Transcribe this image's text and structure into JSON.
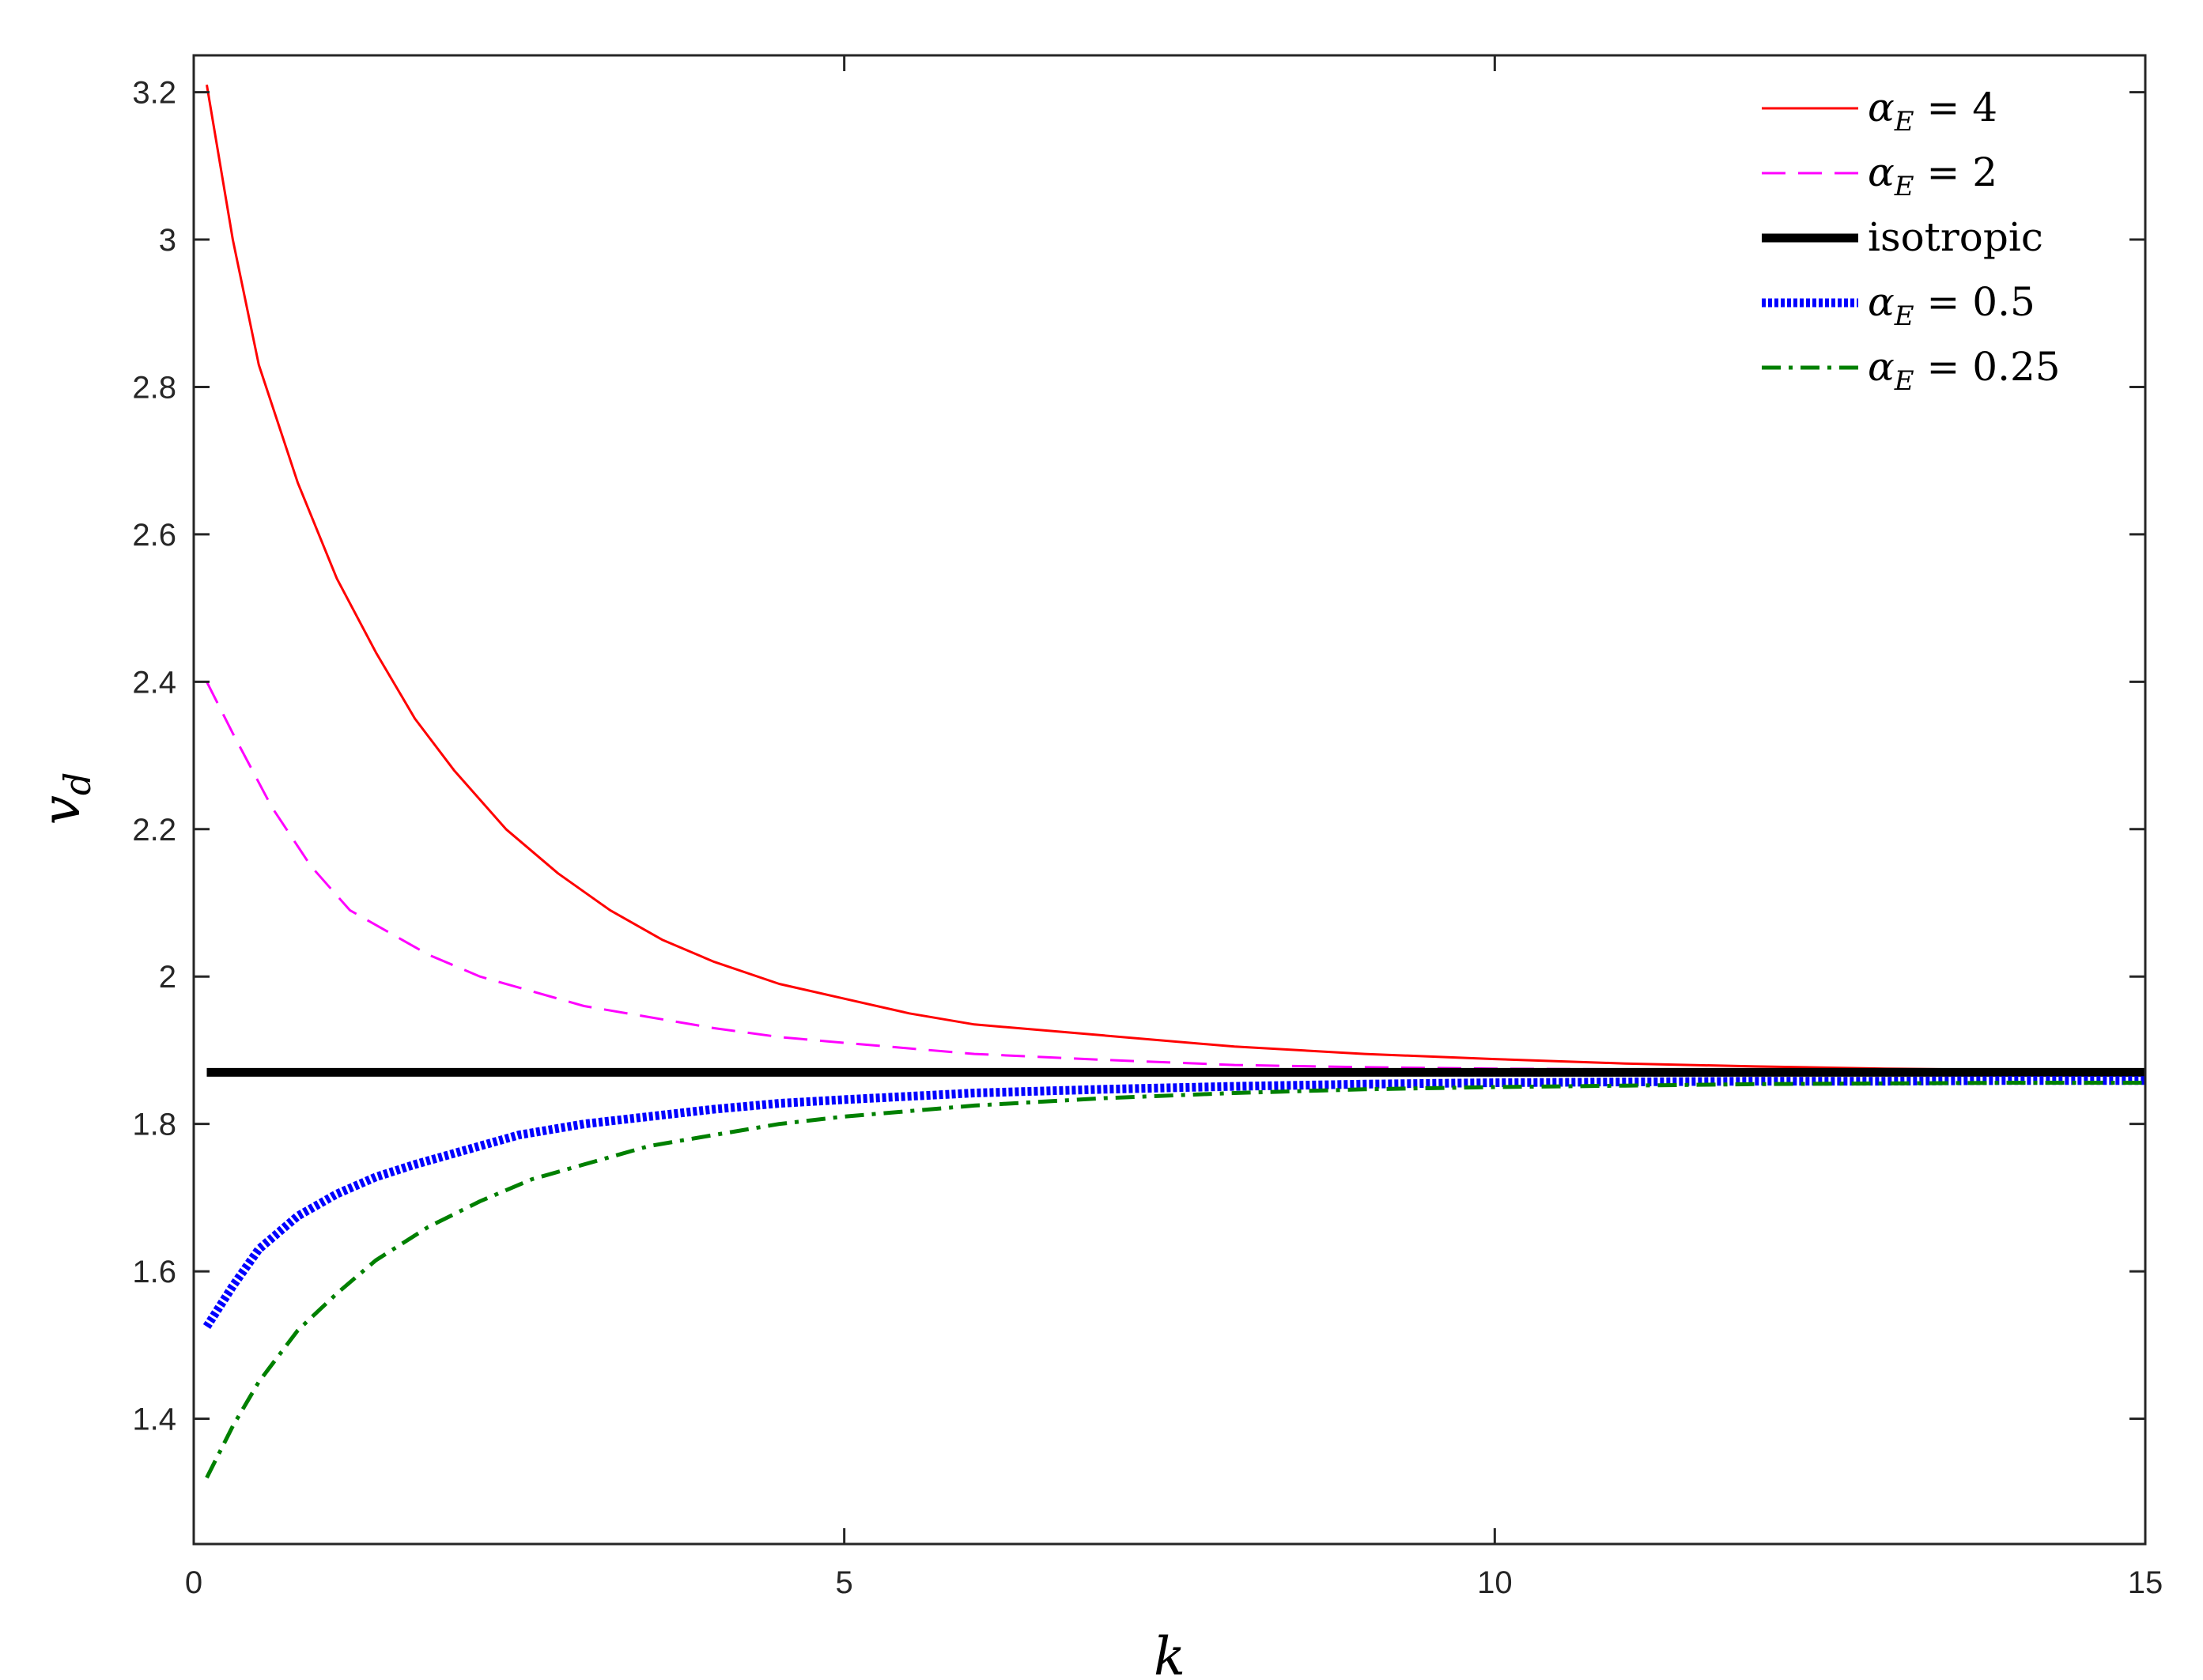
{
  "chart_data": {
    "type": "line",
    "title": "",
    "xlabel": "k",
    "ylabel": {
      "base": "v",
      "sub": "d"
    },
    "xlim": [
      0,
      15
    ],
    "ylim": [
      1.23,
      3.25
    ],
    "xticks": [
      0,
      5,
      10,
      15
    ],
    "yticks": [
      1.4,
      1.6,
      1.8,
      2.0,
      2.2,
      2.4,
      2.6,
      2.8,
      3.0,
      3.2
    ],
    "ytick_labels": [
      "1.4",
      "1.6",
      "1.8",
      "2",
      "2.2",
      "2.4",
      "2.6",
      "2.8",
      "3",
      "3.2"
    ],
    "xtick_labels": [
      "0",
      "5",
      "10",
      "15"
    ],
    "grid": false,
    "legend_position": "top-right",
    "series": [
      {
        "name": "αE = 4",
        "label": {
          "pre": "α",
          "sub": "E",
          "post": " = 4"
        },
        "color": "#ff0000",
        "style": "solid",
        "x": [
          0.1,
          0.3,
          0.5,
          0.8,
          1.1,
          1.4,
          1.7,
          2.0,
          2.4,
          2.8,
          3.2,
          3.6,
          4.0,
          4.5,
          5.0,
          5.5,
          6.0,
          7.0,
          8.0,
          9.0,
          10.0,
          11.0,
          12.0,
          13.0,
          14.0,
          15.0
        ],
        "y": [
          3.21,
          3.0,
          2.83,
          2.67,
          2.54,
          2.44,
          2.35,
          2.28,
          2.2,
          2.14,
          2.09,
          2.05,
          2.02,
          1.99,
          1.97,
          1.95,
          1.935,
          1.92,
          1.905,
          1.895,
          1.888,
          1.882,
          1.878,
          1.875,
          1.873,
          1.872
        ]
      },
      {
        "name": "αE = 2",
        "label": {
          "pre": "α",
          "sub": "E",
          "post": " = 2"
        },
        "color": "#ff00ff",
        "style": "dashed",
        "x": [
          0.1,
          0.3,
          0.6,
          0.9,
          1.2,
          1.5,
          1.8,
          2.2,
          2.6,
          3.0,
          3.5,
          4.0,
          4.5,
          5.0,
          6.0,
          7.0,
          8.0,
          9.0,
          10.0,
          11.0,
          12.0,
          13.0,
          14.0,
          15.0
        ],
        "y": [
          2.4,
          2.33,
          2.23,
          2.15,
          2.09,
          2.06,
          2.03,
          2.0,
          1.98,
          1.96,
          1.945,
          1.93,
          1.918,
          1.91,
          1.895,
          1.887,
          1.88,
          1.877,
          1.875,
          1.874,
          1.873,
          1.872,
          1.872,
          1.871
        ]
      },
      {
        "name": "isotropic",
        "label": {
          "pre": "isotropic",
          "sub": "",
          "post": ""
        },
        "color": "#000000",
        "style": "thick",
        "x": [
          0.1,
          15.0
        ],
        "y": [
          1.87,
          1.87
        ]
      },
      {
        "name": "αE = 0.5",
        "label": {
          "pre": "α",
          "sub": "E",
          "post": " = 0.5"
        },
        "color": "#0000ff",
        "style": "dotted",
        "x": [
          0.1,
          0.3,
          0.5,
          0.8,
          1.1,
          1.4,
          1.7,
          2.0,
          2.5,
          3.0,
          3.5,
          4.0,
          4.5,
          5.0,
          6.0,
          7.0,
          8.0,
          9.0,
          10.0,
          11.0,
          12.0,
          13.0,
          14.0,
          15.0
        ],
        "y": [
          1.525,
          1.58,
          1.63,
          1.675,
          1.705,
          1.728,
          1.745,
          1.76,
          1.785,
          1.8,
          1.81,
          1.82,
          1.828,
          1.833,
          1.842,
          1.847,
          1.851,
          1.854,
          1.856,
          1.857,
          1.858,
          1.858,
          1.859,
          1.859
        ]
      },
      {
        "name": "αE = 0.25",
        "label": {
          "pre": "α",
          "sub": "E",
          "post": " = 0.25"
        },
        "color": "#008000",
        "style": "dashdot",
        "x": [
          0.1,
          0.3,
          0.5,
          0.8,
          1.1,
          1.4,
          1.8,
          2.2,
          2.6,
          3.0,
          3.5,
          4.0,
          4.5,
          5.0,
          6.0,
          7.0,
          8.0,
          9.0,
          10.0,
          11.0,
          12.0,
          13.0,
          14.0,
          15.0
        ],
        "y": [
          1.32,
          1.39,
          1.45,
          1.52,
          1.57,
          1.615,
          1.66,
          1.695,
          1.725,
          1.745,
          1.77,
          1.785,
          1.8,
          1.81,
          1.825,
          1.835,
          1.842,
          1.847,
          1.85,
          1.852,
          1.854,
          1.855,
          1.856,
          1.856
        ]
      }
    ]
  }
}
